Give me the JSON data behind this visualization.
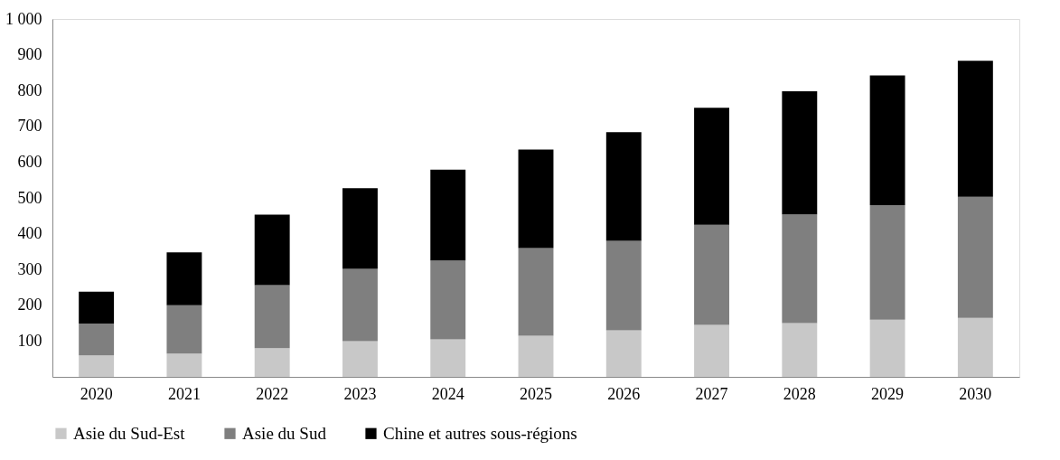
{
  "chart_data": {
    "type": "bar",
    "stacked": true,
    "categories": [
      "2020",
      "2021",
      "2022",
      "2023",
      "2024",
      "2025",
      "2026",
      "2027",
      "2028",
      "2029",
      "2030"
    ],
    "series": [
      {
        "name": "Asie du Sud-Est",
        "color": "#c8c8c8",
        "values": [
          60,
          65,
          80,
          100,
          105,
          115,
          130,
          145,
          150,
          160,
          165
        ]
      },
      {
        "name": "Asie du Sud",
        "color": "#7f7f7f",
        "values": [
          89,
          135,
          176,
          202,
          220,
          245,
          250,
          280,
          304,
          320,
          338
        ]
      },
      {
        "name": "Chine et autres sous-régions",
        "color": "#000000",
        "values": [
          89,
          148,
          197,
          225,
          254,
          275,
          304,
          327,
          344,
          362,
          380
        ]
      }
    ],
    "ylim": [
      0,
      1000
    ],
    "yticks": [
      100,
      200,
      300,
      400,
      500,
      600,
      700,
      800,
      900,
      {
        "value": 1000,
        "label": "1 000"
      }
    ],
    "grid": false,
    "legend": "bottom"
  }
}
